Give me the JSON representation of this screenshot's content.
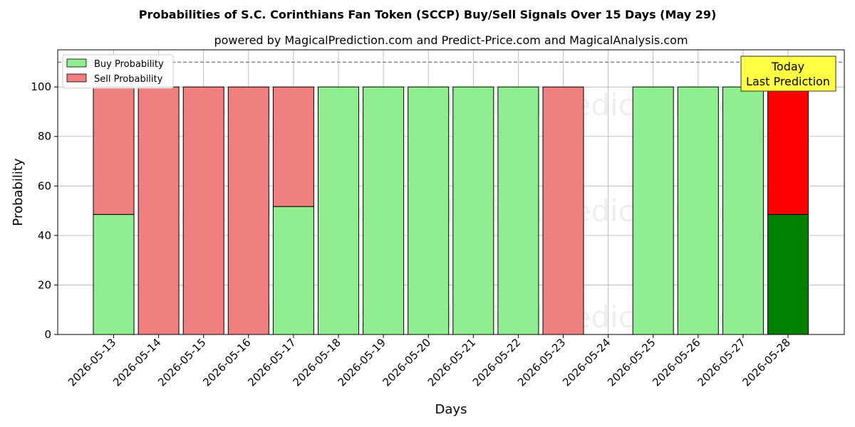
{
  "chart_data": {
    "type": "bar",
    "title": "Probabilities of S.C. Corinthians Fan Token (SCCP) Buy/Sell Signals Over 15 Days (May 29)",
    "subtitle": "powered by MagicalPrediction.com and Predict-Price.com and MagicalAnalysis.com",
    "xlabel": "Days",
    "ylabel": "Probability",
    "ylim": [
      0,
      115
    ],
    "yticks": [
      0,
      20,
      40,
      60,
      80,
      100
    ],
    "grid": true,
    "stacked": true,
    "legend_position": "top-left",
    "reference_line": 110,
    "categories": [
      "2026-05-13",
      "2026-05-14",
      "2026-05-15",
      "2026-05-16",
      "2026-05-17",
      "2026-05-18",
      "2026-05-19",
      "2026-05-20",
      "2026-05-21",
      "2026-05-22",
      "2026-05-23",
      "2026-05-24",
      "2026-05-25",
      "2026-05-26",
      "2026-05-27",
      "2026-05-28"
    ],
    "series": [
      {
        "name": "Buy Probability",
        "color": "#90ee90",
        "values": [
          48.5,
          0,
          0,
          0,
          51.7,
          100,
          100,
          100,
          100,
          100,
          0,
          null,
          100,
          100,
          100,
          48.5
        ]
      },
      {
        "name": "Sell Probability",
        "color": "#f08080",
        "values": [
          51.5,
          100,
          100,
          100,
          48.3,
          0,
          0,
          0,
          0,
          0,
          100,
          null,
          0,
          0,
          0,
          51.5
        ]
      }
    ],
    "highlight": {
      "category": "2026-05-28",
      "buy_color": "#008000",
      "sell_color": "#ff0000"
    },
    "annotation": {
      "lines": [
        "Today",
        "Last Prediction"
      ],
      "background": "#ffff44"
    },
    "watermarks": [
      "MagicalAnalysis.com",
      "MagicalPrediction.com"
    ]
  }
}
